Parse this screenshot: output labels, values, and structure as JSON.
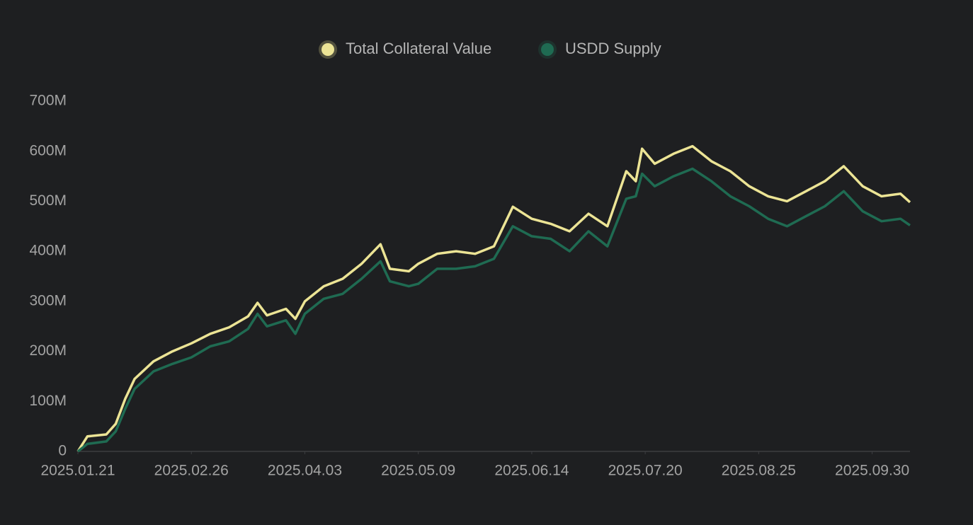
{
  "chart_data": {
    "type": "line",
    "x": [
      "2025.01.21",
      "2025.01.24",
      "2025.01.30",
      "2025.02.02",
      "2025.02.05",
      "2025.02.08",
      "2025.02.14",
      "2025.02.20",
      "2025.02.26",
      "2025.03.04",
      "2025.03.10",
      "2025.03.16",
      "2025.03.19",
      "2025.03.22",
      "2025.03.28",
      "2025.03.31",
      "2025.04.03",
      "2025.04.09",
      "2025.04.15",
      "2025.04.21",
      "2025.04.27",
      "2025.04.30",
      "2025.05.06",
      "2025.05.09",
      "2025.05.15",
      "2025.05.21",
      "2025.05.27",
      "2025.06.02",
      "2025.06.08",
      "2025.06.14",
      "2025.06.20",
      "2025.06.26",
      "2025.07.02",
      "2025.07.08",
      "2025.07.14",
      "2025.07.17",
      "2025.07.19",
      "2025.07.23",
      "2025.07.29",
      "2025.08.04",
      "2025.08.10",
      "2025.08.16",
      "2025.08.22",
      "2025.08.28",
      "2025.09.03",
      "2025.09.09",
      "2025.09.15",
      "2025.09.21",
      "2025.09.27",
      "2025.10.03",
      "2025.10.09",
      "2025.10.12"
    ],
    "series": [
      {
        "name": "Total Collateral Value",
        "color": "#ece495",
        "values": [
          0,
          30000000,
          34000000,
          55000000,
          105000000,
          145000000,
          180000000,
          200000000,
          216000000,
          235000000,
          248000000,
          270000000,
          297000000,
          272000000,
          285000000,
          265000000,
          300000000,
          330000000,
          345000000,
          375000000,
          414000000,
          365000000,
          360000000,
          375000000,
          395000000,
          400000000,
          395000000,
          410000000,
          489000000,
          465000000,
          455000000,
          440000000,
          475000000,
          450000000,
          560000000,
          540000000,
          605000000,
          575000000,
          595000000,
          610000000,
          580000000,
          560000000,
          530000000,
          510000000,
          500000000,
          520000000,
          540000000,
          570000000,
          530000000,
          510000000,
          515000000,
          498000000
        ]
      },
      {
        "name": "USDD Supply",
        "color": "#1f6b52",
        "values": [
          0,
          15000000,
          20000000,
          40000000,
          85000000,
          125000000,
          160000000,
          175000000,
          188000000,
          210000000,
          220000000,
          245000000,
          275000000,
          250000000,
          262000000,
          235000000,
          275000000,
          305000000,
          315000000,
          345000000,
          380000000,
          340000000,
          330000000,
          335000000,
          365000000,
          365000000,
          370000000,
          385000000,
          450000000,
          430000000,
          425000000,
          400000000,
          440000000,
          410000000,
          505000000,
          510000000,
          555000000,
          530000000,
          550000000,
          565000000,
          540000000,
          510000000,
          490000000,
          465000000,
          450000000,
          470000000,
          490000000,
          520000000,
          480000000,
          460000000,
          465000000,
          452000000
        ]
      }
    ],
    "xlim": [
      "2025.01.21",
      "2025.10.12"
    ],
    "xticks": [
      "2025.01.21",
      "2025.02.26",
      "2025.04.03",
      "2025.05.09",
      "2025.06.14",
      "2025.07.20",
      "2025.08.25",
      "2025.09.30"
    ],
    "ylim": [
      0,
      700000000
    ],
    "yticks": [
      0,
      {
        "value": 100000000,
        "label": "100M"
      },
      {
        "value": 200000000,
        "label": "200M"
      },
      {
        "value": 300000000,
        "label": "300M"
      },
      {
        "value": 400000000,
        "label": "400M"
      },
      {
        "value": 500000000,
        "label": "500M"
      },
      {
        "value": 600000000,
        "label": "600M"
      },
      {
        "value": 700000000,
        "label": "700M"
      }
    ],
    "legend": "top"
  }
}
